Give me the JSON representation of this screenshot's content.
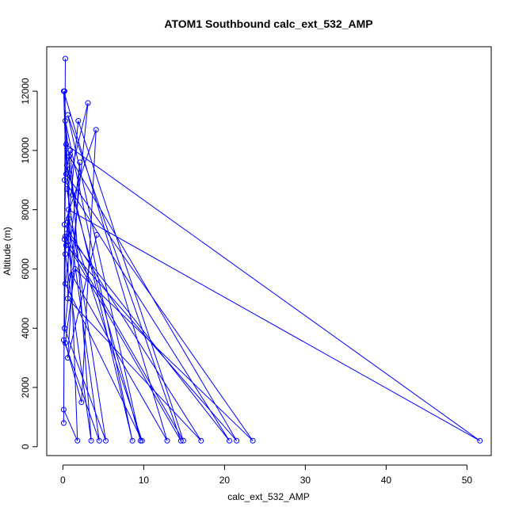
{
  "chart_data": {
    "type": "line",
    "title": "ATOM1 Southbound calc_ext_532_AMP",
    "xlabel": "calc_ext_532_AMP",
    "ylabel": "Altitude (m)",
    "xlim": [
      -2,
      53
    ],
    "ylim": [
      -300,
      13500
    ],
    "x_ticks": [
      0,
      10,
      20,
      30,
      40,
      50
    ],
    "y_ticks": [
      0,
      2000,
      4000,
      6000,
      8000,
      10000,
      12000
    ],
    "grid": false,
    "legend": "none",
    "marker": "open-circle",
    "line_color": "#0000ff",
    "series": [
      {
        "x": [
          0.1,
          0.3,
          0.1,
          1.8,
          0.2,
          0.5,
          8.6,
          0.3,
          1.2,
          9.6,
          0.6,
          14.6,
          0.2,
          0.4,
          51.6,
          0.7,
          0.3,
          3.5,
          0.9,
          0.2,
          20.6,
          0.5,
          1.1,
          12.9,
          0.1,
          0.4,
          23.5,
          1.5,
          0.3,
          2.3,
          4.1,
          0.2,
          17.1,
          0.6,
          0.8,
          21.5,
          0.4,
          1.9,
          14.9,
          0.3,
          0.2,
          5.3,
          0.5,
          3.1,
          0.1,
          4.5,
          0.7,
          9.8,
          0.3,
          2.1,
          0.6,
          4.2
        ],
        "y": [
          800,
          13100,
          1250,
          200,
          12000,
          9500,
          200,
          11000,
          8500,
          200,
          11200,
          200,
          7000,
          10200,
          200,
          8000,
          6500,
          200,
          10000,
          9000,
          200,
          7200,
          5800,
          200,
          12000,
          9200,
          200,
          6000,
          3500,
          1500,
          10700,
          7500,
          200,
          5000,
          9800,
          200,
          6800,
          11000,
          200,
          7100,
          4000,
          200,
          8700,
          11600,
          3600,
          200,
          7700,
          200,
          5500,
          9600,
          3000,
          7150
        ]
      }
    ]
  }
}
